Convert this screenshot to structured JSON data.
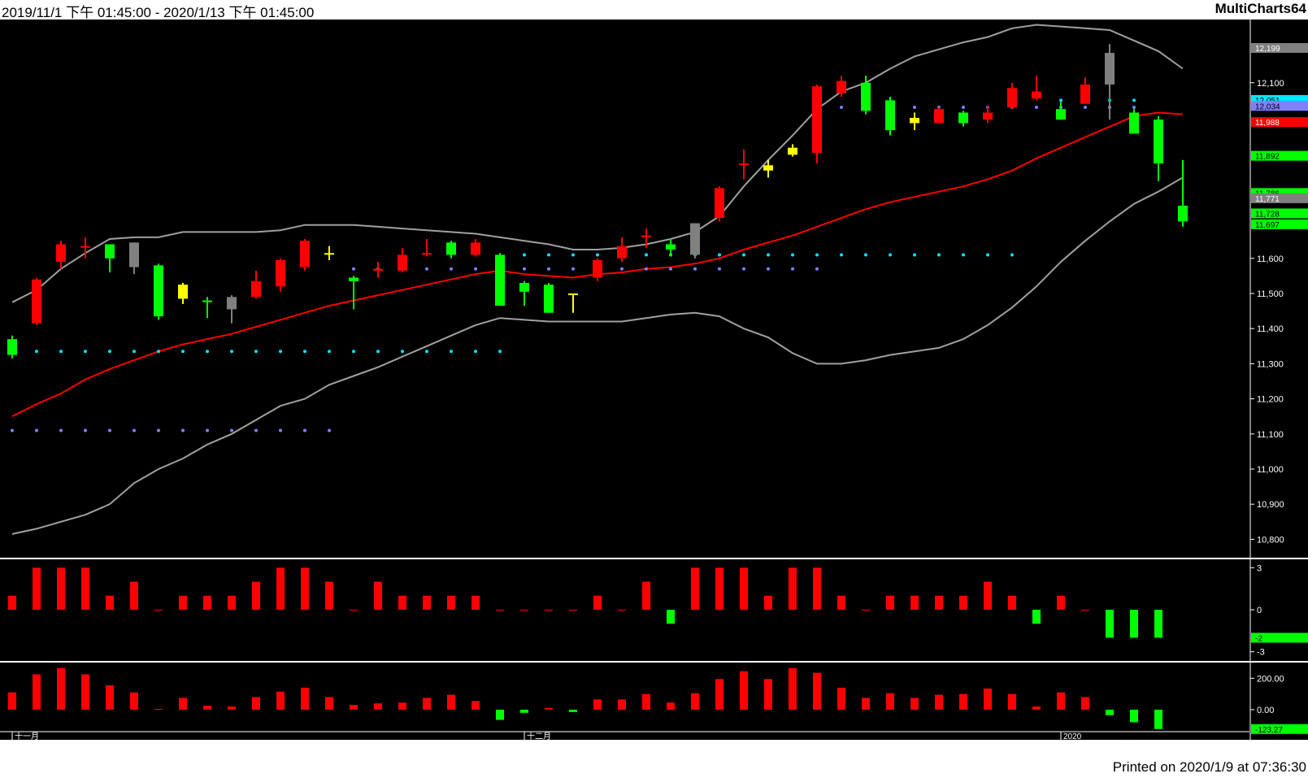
{
  "header": {
    "date_range": "2019/11/1 下午 01:45:00 - 2020/1/13 下午 01:45:00",
    "app_name": "MultiCharts64"
  },
  "footer": {
    "printed": "Printed on 2020/1/9 at 07:36:30"
  },
  "colors": {
    "background": "#000000",
    "up": "#ff0000",
    "down": "#00ff00",
    "neutral": "#ffff00",
    "gray": "#808080",
    "ma": "#ff0000",
    "band": "#a0a0a0",
    "cyan_dots": "#00e5ff",
    "purple_dots": "#8080ff"
  },
  "chart_data": [
    {
      "type": "candlestick",
      "ylim": [
        10750,
        12280
      ],
      "y_ticks": [
        "10,800",
        "10,900",
        "11,000",
        "11,100",
        "11,200",
        "11,300",
        "11,400",
        "11,500",
        "11,600",
        "12,100"
      ],
      "y_tick_values": [
        10800,
        10900,
        11000,
        11100,
        11200,
        11300,
        11400,
        11500,
        11600,
        12100
      ],
      "x_labels": [
        {
          "index": 0,
          "label": "十一月"
        },
        {
          "index": 21,
          "label": "十二月"
        },
        {
          "index": 43,
          "label": "2020"
        }
      ],
      "candles": [
        {
          "o": 11325,
          "h": 11380,
          "l": 11315,
          "c": 11370,
          "col": "down"
        },
        {
          "o": 11415,
          "h": 11545,
          "l": 11410,
          "c": 11540,
          "col": "up"
        },
        {
          "o": 11590,
          "h": 11650,
          "l": 11570,
          "c": 11640,
          "col": "up"
        },
        {
          "o": 11635,
          "h": 11660,
          "l": 11600,
          "c": 11635,
          "col": "up"
        },
        {
          "o": 11640,
          "h": 11640,
          "l": 11560,
          "c": 11600,
          "col": "down"
        },
        {
          "o": 11645,
          "h": 11645,
          "l": 11555,
          "c": 11575,
          "col": "gray"
        },
        {
          "o": 11580,
          "h": 11585,
          "l": 11425,
          "c": 11435,
          "col": "down"
        },
        {
          "o": 11525,
          "h": 11530,
          "l": 11470,
          "c": 11485,
          "col": "neutral"
        },
        {
          "o": 11480,
          "h": 11490,
          "l": 11430,
          "c": 11480,
          "col": "down"
        },
        {
          "o": 11490,
          "h": 11495,
          "l": 11415,
          "c": 11455,
          "col": "gray"
        },
        {
          "o": 11490,
          "h": 11565,
          "l": 11485,
          "c": 11535,
          "col": "up"
        },
        {
          "o": 11520,
          "h": 11600,
          "l": 11505,
          "c": 11595,
          "col": "up"
        },
        {
          "o": 11575,
          "h": 11655,
          "l": 11565,
          "c": 11650,
          "col": "up"
        },
        {
          "o": 11615,
          "h": 11635,
          "l": 11595,
          "c": 11615,
          "col": "neutral"
        },
        {
          "o": 11545,
          "h": 11550,
          "l": 11455,
          "c": 11535,
          "col": "down"
        },
        {
          "o": 11565,
          "h": 11590,
          "l": 11545,
          "c": 11570,
          "col": "up"
        },
        {
          "o": 11565,
          "h": 11630,
          "l": 11560,
          "c": 11610,
          "col": "up"
        },
        {
          "o": 11615,
          "h": 11655,
          "l": 11605,
          "c": 11615,
          "col": "up"
        },
        {
          "o": 11645,
          "h": 11650,
          "l": 11600,
          "c": 11610,
          "col": "down"
        },
        {
          "o": 11610,
          "h": 11655,
          "l": 11605,
          "c": 11645,
          "col": "up"
        },
        {
          "o": 11610,
          "h": 11615,
          "l": 11465,
          "c": 11465,
          "col": "down"
        },
        {
          "o": 11530,
          "h": 11535,
          "l": 11465,
          "c": 11505,
          "col": "down"
        },
        {
          "o": 11525,
          "h": 11530,
          "l": 11445,
          "c": 11445,
          "col": "down"
        },
        {
          "o": 11500,
          "h": 11500,
          "l": 11445,
          "c": 11500,
          "col": "neutral"
        },
        {
          "o": 11545,
          "h": 11600,
          "l": 11535,
          "c": 11595,
          "col": "up"
        },
        {
          "o": 11600,
          "h": 11660,
          "l": 11590,
          "c": 11635,
          "col": "up"
        },
        {
          "o": 11665,
          "h": 11685,
          "l": 11630,
          "c": 11665,
          "col": "up"
        },
        {
          "o": 11640,
          "h": 11655,
          "l": 11605,
          "c": 11625,
          "col": "down"
        },
        {
          "o": 11610,
          "h": 11700,
          "l": 11600,
          "c": 11700,
          "col": "gray"
        },
        {
          "o": 11715,
          "h": 11805,
          "l": 11705,
          "c": 11800,
          "col": "up"
        },
        {
          "o": 11870,
          "h": 11910,
          "l": 11825,
          "c": 11870,
          "col": "up"
        },
        {
          "o": 11850,
          "h": 11880,
          "l": 11830,
          "c": 11865,
          "col": "neutral"
        },
        {
          "o": 11895,
          "h": 11925,
          "l": 11890,
          "c": 11915,
          "col": "neutral"
        },
        {
          "o": 11900,
          "h": 12095,
          "l": 11870,
          "c": 12090,
          "col": "up"
        },
        {
          "o": 12070,
          "h": 12120,
          "l": 12060,
          "c": 12105,
          "col": "up"
        },
        {
          "o": 12100,
          "h": 12120,
          "l": 12010,
          "c": 12020,
          "col": "down"
        },
        {
          "o": 12050,
          "h": 12060,
          "l": 11950,
          "c": 11965,
          "col": "down"
        },
        {
          "o": 12000,
          "h": 12015,
          "l": 11965,
          "c": 11985,
          "col": "neutral"
        },
        {
          "o": 11985,
          "h": 12030,
          "l": 11985,
          "c": 12025,
          "col": "up"
        },
        {
          "o": 12015,
          "h": 12020,
          "l": 11975,
          "c": 11985,
          "col": "down"
        },
        {
          "o": 11995,
          "h": 12035,
          "l": 11985,
          "c": 12015,
          "col": "up"
        },
        {
          "o": 12030,
          "h": 12100,
          "l": 12025,
          "c": 12085,
          "col": "up"
        },
        {
          "o": 12055,
          "h": 12120,
          "l": 12050,
          "c": 12075,
          "col": "up"
        },
        {
          "o": 12025,
          "h": 12045,
          "l": 11995,
          "c": 11995,
          "col": "down"
        },
        {
          "o": 12040,
          "h": 12115,
          "l": 12040,
          "c": 12095,
          "col": "up"
        },
        {
          "o": 12095,
          "h": 12210,
          "l": 11995,
          "c": 12185,
          "col": "gray"
        },
        {
          "o": 12015,
          "h": 12025,
          "l": 11955,
          "c": 11955,
          "col": "down"
        },
        {
          "o": 11995,
          "h": 12005,
          "l": 11820,
          "c": 11870,
          "col": "down"
        },
        {
          "o": 11750,
          "h": 11880,
          "l": 11690,
          "c": 11705,
          "col": "down"
        }
      ],
      "ma": [
        11150,
        11185,
        11215,
        11255,
        11285,
        11310,
        11335,
        11355,
        11370,
        11385,
        11405,
        11425,
        11445,
        11465,
        11480,
        11495,
        11510,
        11525,
        11540,
        11555,
        11565,
        11555,
        11550,
        11545,
        11555,
        11560,
        11570,
        11575,
        11585,
        11600,
        11625,
        11645,
        11665,
        11690,
        11715,
        11740,
        11760,
        11775,
        11790,
        11805,
        11825,
        11850,
        11885,
        11915,
        11945,
        11975,
        12005,
        12015,
        12010
      ],
      "upper_band": [
        11475,
        11510,
        11570,
        11615,
        11655,
        11660,
        11660,
        11675,
        11675,
        11675,
        11675,
        11680,
        11695,
        11695,
        11695,
        11690,
        11685,
        11680,
        11675,
        11670,
        11660,
        11650,
        11640,
        11625,
        11625,
        11630,
        11640,
        11655,
        11675,
        11720,
        11805,
        11880,
        11950,
        12025,
        12075,
        12100,
        12140,
        12175,
        12195,
        12215,
        12230,
        12255,
        12265,
        12260,
        12255,
        12250,
        12220,
        12190,
        12140
      ],
      "lower_band": [
        10815,
        10830,
        10850,
        10870,
        10900,
        10960,
        11000,
        11030,
        11070,
        11100,
        11140,
        11180,
        11200,
        11240,
        11265,
        11290,
        11320,
        11350,
        11380,
        11410,
        11430,
        11425,
        11420,
        11420,
        11420,
        11420,
        11430,
        11440,
        11445,
        11435,
        11400,
        11375,
        11330,
        11300,
        11300,
        11310,
        11325,
        11335,
        11345,
        11370,
        11410,
        11460,
        11520,
        11590,
        11650,
        11705,
        11755,
        11790,
        11830
      ],
      "cyan_dots": [
        {
          "from": 0,
          "to": 20,
          "value": 11335
        },
        {
          "from": 21,
          "to": 41,
          "value": 11610
        },
        {
          "from": 43,
          "to": 46,
          "value": 12050
        }
      ],
      "purple_dots": [
        {
          "from": 0,
          "to": 13,
          "value": 11110
        },
        {
          "from": 14,
          "to": 33,
          "value": 11570
        },
        {
          "from": 34,
          "to": 46,
          "value": 12030
        }
      ],
      "price_tags": [
        {
          "label": "12,199",
          "value": 12199,
          "bg": "#808080",
          "fg": "#ffffff"
        },
        {
          "label": "12,051",
          "value": 12051,
          "bg": "#00e5ff",
          "fg": "#000000"
        },
        {
          "label": "12,034",
          "value": 12034,
          "bg": "#8080ff",
          "fg": "#000000"
        },
        {
          "label": "11,988",
          "value": 11988,
          "bg": "#ff0000",
          "fg": "#ffffff"
        },
        {
          "label": "11,892",
          "value": 11892,
          "bg": "#00ff00",
          "fg": "#000000"
        },
        {
          "label": "11,786",
          "value": 11786,
          "bg": "#00ff00",
          "fg": "#000000"
        },
        {
          "label": "11,771",
          "value": 11771,
          "bg": "#808080",
          "fg": "#ffffff"
        },
        {
          "label": "11,728",
          "value": 11728,
          "bg": "#00ff00",
          "fg": "#000000"
        },
        {
          "label": "11,697",
          "value": 11697,
          "bg": "#00ff00",
          "fg": "#000000"
        }
      ]
    },
    {
      "type": "bar",
      "ylim": [
        -3.6,
        3.6
      ],
      "y_ticks": [
        "3",
        "0",
        "-3"
      ],
      "y_tick_values": [
        3,
        0,
        -3
      ],
      "values": [
        1,
        3,
        3,
        3,
        1,
        2,
        0,
        1,
        1,
        1,
        2,
        3,
        3,
        2,
        0,
        2,
        1,
        1,
        1,
        1,
        0,
        0,
        0,
        0,
        1,
        0,
        2,
        -1,
        3,
        3,
        3,
        1,
        3,
        3,
        1,
        0,
        1,
        1,
        1,
        1,
        2,
        1,
        -1,
        1,
        0,
        -2,
        -2,
        -2
      ],
      "last_tag": {
        "label": "-2",
        "value": -2
      }
    },
    {
      "type": "bar",
      "ylim": [
        -140,
        300
      ],
      "y_ticks": [
        "200.00",
        "0.00"
      ],
      "y_tick_values": [
        200,
        0
      ],
      "values": [
        110,
        225,
        265,
        225,
        155,
        110,
        5,
        75,
        25,
        20,
        80,
        115,
        140,
        80,
        30,
        40,
        45,
        75,
        95,
        55,
        -65,
        -20,
        10,
        -15,
        65,
        65,
        100,
        45,
        105,
        195,
        245,
        195,
        265,
        235,
        140,
        75,
        105,
        75,
        95,
        100,
        135,
        100,
        20,
        110,
        80,
        -35,
        -80,
        -123.27
      ],
      "last_tag": {
        "label": "-123.27",
        "value": -123.27
      }
    }
  ]
}
